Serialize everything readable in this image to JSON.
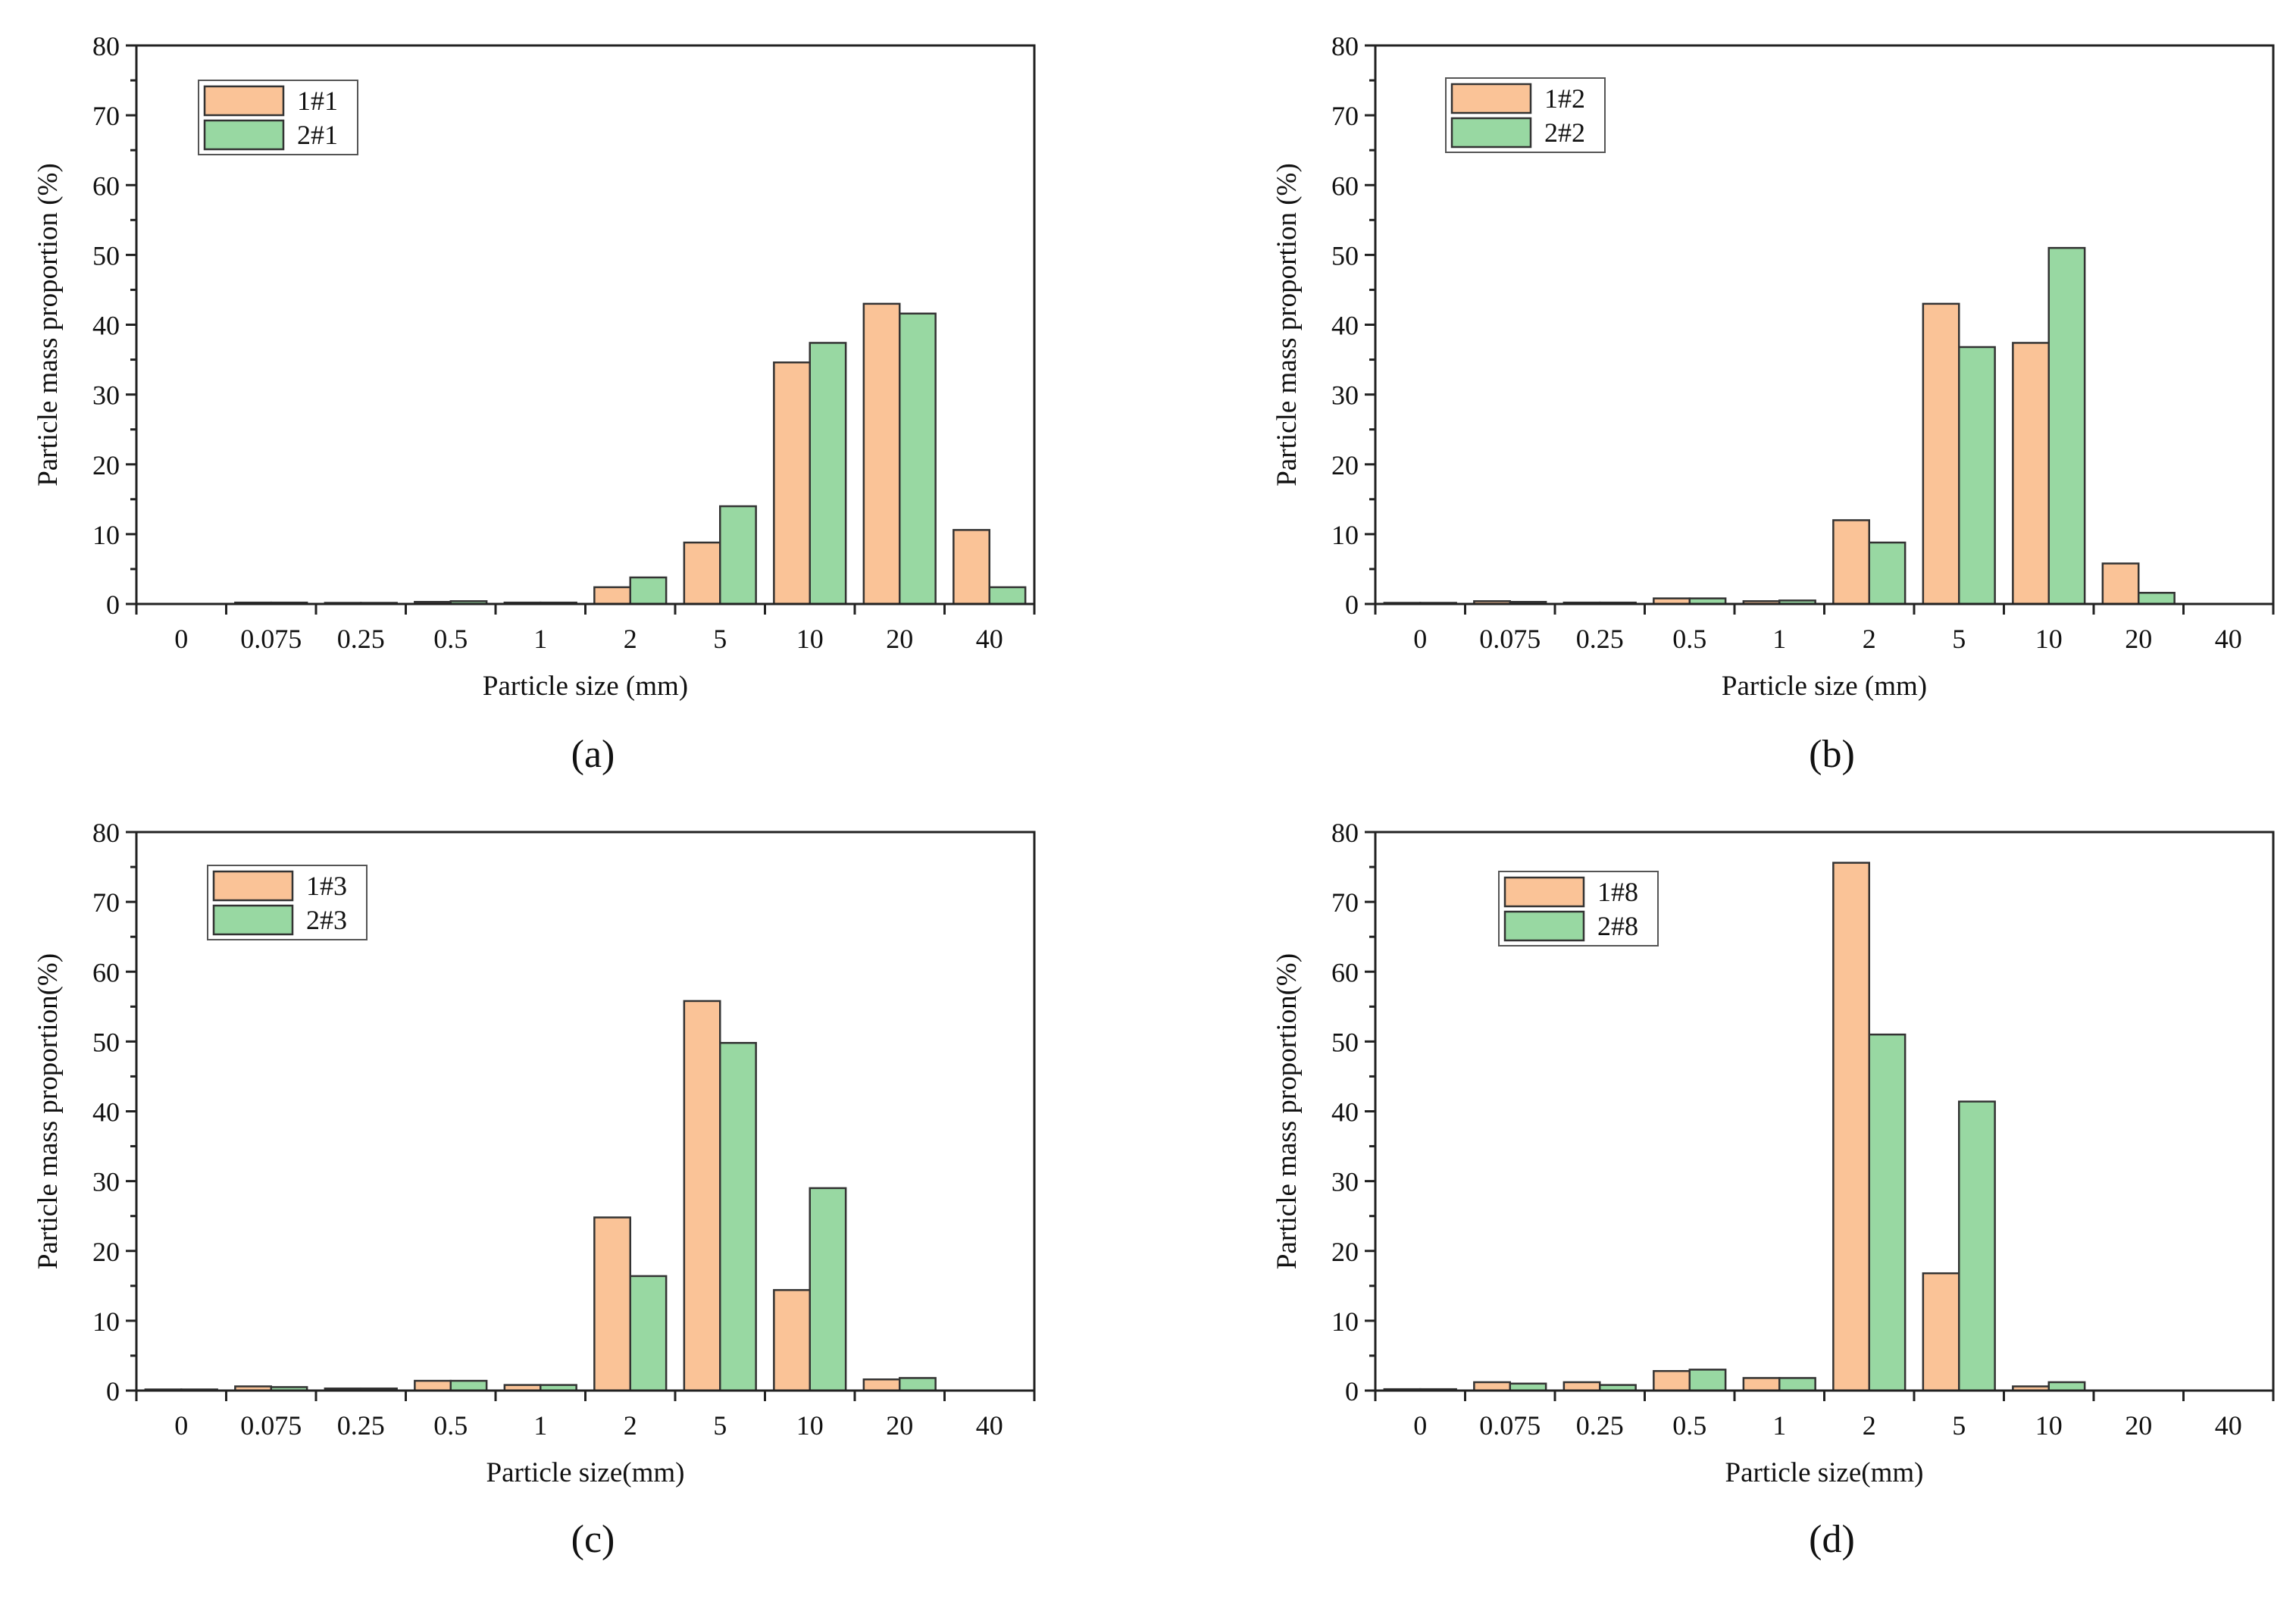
{
  "colors": {
    "series1": "#FAC397",
    "series2": "#98D8A2",
    "axis": "#222222",
    "bar_outline": "#333333"
  },
  "chart_data": [
    {
      "type": "bar",
      "panel_label": "(a)",
      "xlabel": "Particle size (mm)",
      "ylabel": "Particle mass proportion (%)",
      "xticks": [
        "0",
        "0.075",
        "0.25",
        "0.5",
        "1",
        "2",
        "5",
        "10",
        "20",
        "40"
      ],
      "yticks": [
        "0",
        "10",
        "20",
        "30",
        "40",
        "50",
        "60",
        "70",
        "80"
      ],
      "ylim": [
        0,
        80
      ],
      "legend_position": "top-left",
      "categories": [
        "0.075",
        "0.25",
        "0.5",
        "1",
        "2",
        "5",
        "10",
        "20",
        "40"
      ],
      "series": [
        {
          "name": "1#1",
          "values": [
            0.2,
            0.1,
            0.3,
            0.2,
            2.4,
            8.8,
            34.6,
            43.0,
            10.6
          ]
        },
        {
          "name": "2#1",
          "values": [
            0.2,
            0.1,
            0.4,
            0.2,
            3.8,
            14.0,
            37.4,
            41.6,
            2.4
          ]
        }
      ]
    },
    {
      "type": "bar",
      "panel_label": "(b)",
      "xlabel": "Particle size (mm)",
      "ylabel": "Particle mass proportion (%)",
      "xticks": [
        "0",
        "0.075",
        "0.25",
        "0.5",
        "1",
        "2",
        "5",
        "10",
        "20",
        "40"
      ],
      "yticks": [
        "0",
        "10",
        "20",
        "30",
        "40",
        "50",
        "60",
        "70",
        "80"
      ],
      "ylim": [
        0,
        80
      ],
      "legend_position": "top-left",
      "categories": [
        "0",
        "0.075",
        "0.25",
        "0.5",
        "1",
        "2",
        "5",
        "10",
        "20"
      ],
      "series": [
        {
          "name": "1#2",
          "values": [
            0.1,
            0.4,
            0.2,
            0.8,
            0.4,
            12.0,
            43.0,
            37.4,
            5.8
          ]
        },
        {
          "name": "2#2",
          "values": [
            0.1,
            0.3,
            0.2,
            0.8,
            0.5,
            8.8,
            36.8,
            51.0,
            1.6
          ]
        }
      ]
    },
    {
      "type": "bar",
      "panel_label": "(c)",
      "xlabel": "Particle size(mm)",
      "ylabel": "Particle mass proportion(%)",
      "xticks": [
        "0",
        "0.075",
        "0.25",
        "0.5",
        "1",
        "2",
        "5",
        "10",
        "20",
        "40"
      ],
      "yticks": [
        "0",
        "10",
        "20",
        "30",
        "40",
        "50",
        "60",
        "70",
        "80"
      ],
      "ylim": [
        0,
        80
      ],
      "legend_position": "top-left",
      "categories": [
        "0",
        "0.075",
        "0.25",
        "0.5",
        "1",
        "2",
        "5",
        "10",
        "20"
      ],
      "series": [
        {
          "name": "1#3",
          "values": [
            0.1,
            0.6,
            0.3,
            1.4,
            0.8,
            24.8,
            55.8,
            14.4,
            1.6
          ]
        },
        {
          "name": "2#3",
          "values": [
            0.1,
            0.5,
            0.3,
            1.4,
            0.8,
            16.4,
            49.8,
            29.0,
            1.8
          ]
        }
      ]
    },
    {
      "type": "bar",
      "panel_label": "(d)",
      "xlabel": "Particle size(mm)",
      "ylabel": "Particle mass proportion(%)",
      "xticks": [
        "0",
        "0.075",
        "0.25",
        "0.5",
        "1",
        "2",
        "5",
        "10",
        "20",
        "40"
      ],
      "yticks": [
        "0",
        "10",
        "20",
        "30",
        "40",
        "50",
        "60",
        "70",
        "80"
      ],
      "ylim": [
        0,
        80
      ],
      "legend_position": "top-left",
      "categories": [
        "0",
        "0.075",
        "0.25",
        "0.5",
        "1",
        "2",
        "5",
        "10"
      ],
      "series": [
        {
          "name": "1#8",
          "values": [
            0.2,
            1.2,
            1.2,
            2.8,
            1.8,
            75.6,
            16.8,
            0.6
          ]
        },
        {
          "name": "2#8",
          "values": [
            0.2,
            1.0,
            0.8,
            3.0,
            1.8,
            51.0,
            41.4,
            1.2
          ]
        }
      ]
    }
  ]
}
